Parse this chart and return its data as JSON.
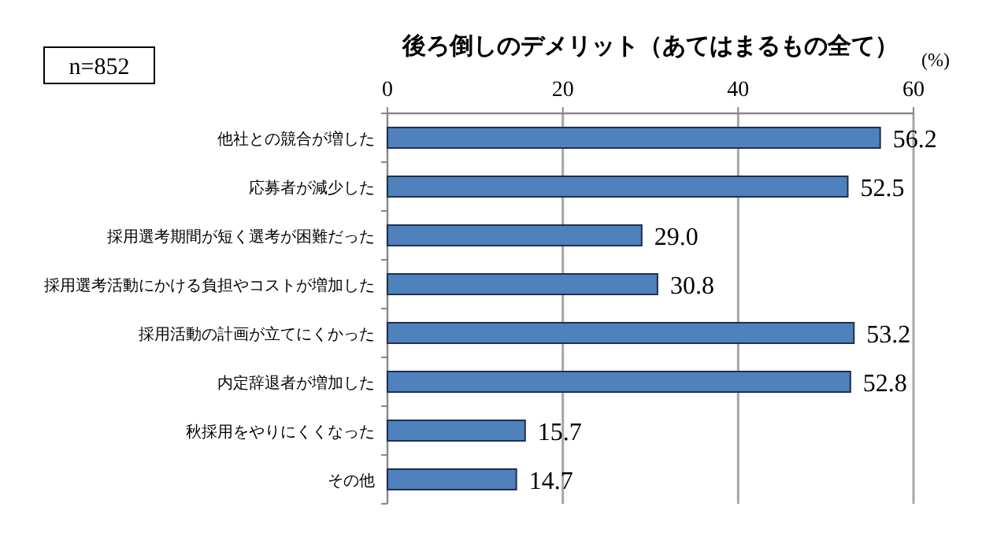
{
  "chart_data": {
    "type": "bar",
    "orientation": "horizontal",
    "title": "後ろ倒しのデメリット（あてはまるもの全て）",
    "xlabel": "(%)",
    "annotations": [
      "n=852"
    ],
    "categories": [
      "他社との競合が増した",
      "応募者が減少した",
      "採用選考期間が短く選考が困難だった",
      "採用選考活動にかける負担やコストが増加した",
      "採用活動の計画が立てにくかった",
      "内定辞退者が増加した",
      "秋採用をやりにくくなった",
      "その他"
    ],
    "values": [
      56.2,
      52.5,
      29.0,
      30.8,
      53.2,
      52.8,
      15.7,
      14.7
    ],
    "color": "#4f81bd",
    "xlim": [
      0,
      60
    ],
    "xticks": [
      0,
      20,
      40,
      60
    ],
    "grid": "x",
    "value_labels": [
      "56.2",
      "52.5",
      "29.0",
      "30.8",
      "53.2",
      "52.8",
      "15.7",
      "14.7"
    ]
  }
}
